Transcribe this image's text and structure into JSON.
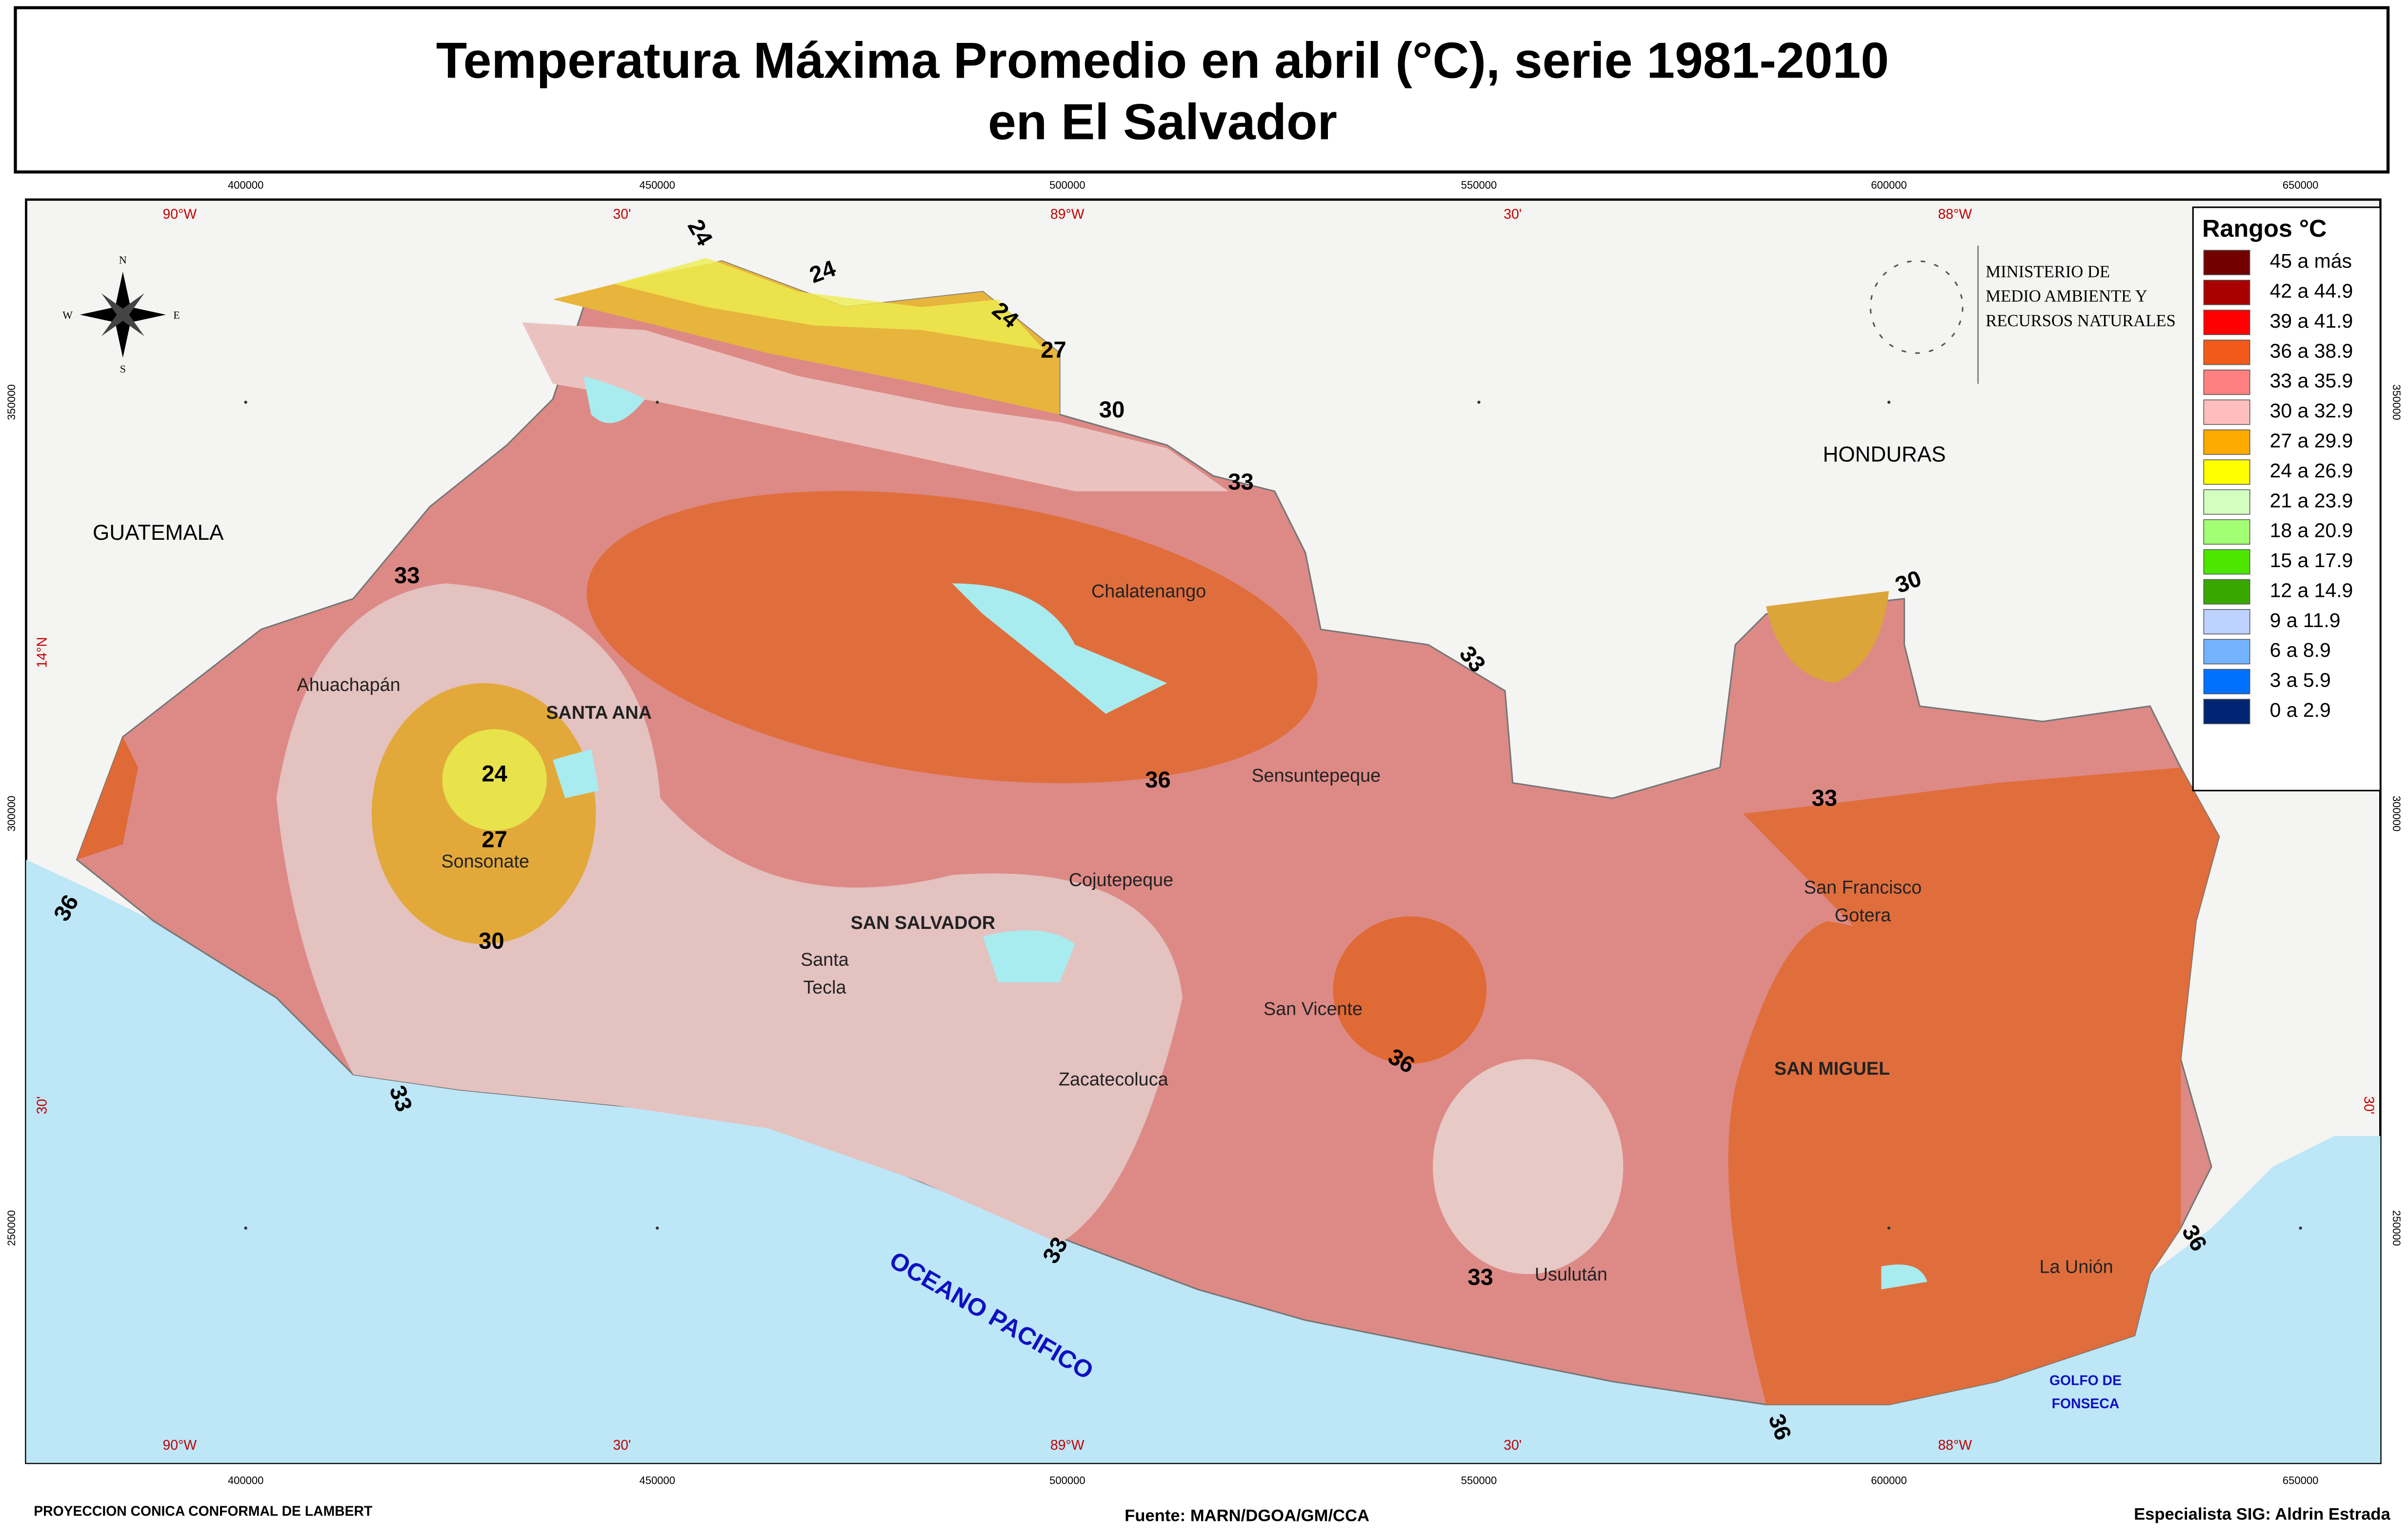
{
  "header": {
    "title": [
      "Temperatura Máxima Promedio en abril (°C), serie 1981-2010",
      "en El Salvador"
    ]
  },
  "legend": {
    "title": "Rangos °C",
    "items": [
      {
        "label": "45 a más",
        "color": "#730000"
      },
      {
        "label": "42 a 44.9",
        "color": "#a80000"
      },
      {
        "label": "39 a 41.9",
        "color": "#ff0000"
      },
      {
        "label": "36 a 38.9",
        "color": "#f25a1c"
      },
      {
        "label": "33 a 35.9",
        "color": "#ff8080"
      },
      {
        "label": "30 a 32.9",
        "color": "#ffbebe"
      },
      {
        "label": "27 a 29.9",
        "color": "#ffaa00"
      },
      {
        "label": "24 a 26.9",
        "color": "#ffff00"
      },
      {
        "label": "21 a 23.9",
        "color": "#d3ffbe"
      },
      {
        "label": "18 a 20.9",
        "color": "#a3ff73"
      },
      {
        "label": "15 a 17.9",
        "color": "#4ce600"
      },
      {
        "label": "12 a 14.9",
        "color": "#38a800"
      },
      {
        "label": "9 a 11.9",
        "color": "#bed2ff"
      },
      {
        "label": "6 a 8.9",
        "color": "#73b2ff"
      },
      {
        "label": "3 a 5.9",
        "color": "#0070ff"
      },
      {
        "label": "0 a 2.9",
        "color": "#002673"
      }
    ]
  },
  "ministry": [
    "MINISTERIO DE",
    "MEDIO AMBIENTE Y",
    "RECURSOS NATURALES"
  ],
  "countries": [
    "GUATEMALA",
    "HONDURAS"
  ],
  "ocean": "OCEANO PACIFICO",
  "gulf": [
    "GOLFO DE",
    "FONSECA"
  ],
  "places": [
    [
      "Chalatenango"
    ],
    [
      "Ahuachapán"
    ],
    [
      "SANTA ANA"
    ],
    [
      "Sensuntepeque"
    ],
    [
      "Sonsonate"
    ],
    [
      "Cojutepeque"
    ],
    [
      "SAN SALVADOR"
    ],
    [
      "Santa",
      "Tecla"
    ],
    [
      "San Vicente"
    ],
    [
      "Zacatecoluca"
    ],
    [
      "San Francisco",
      "Gotera"
    ],
    [
      "SAN MIGUEL"
    ],
    [
      "Usulután"
    ],
    [
      "La Unión"
    ]
  ],
  "isotherms": [
    24,
    24,
    24,
    27,
    30,
    33,
    30,
    33,
    33,
    36,
    33,
    24,
    27,
    30,
    36,
    36,
    33,
    33,
    33,
    36,
    36
  ],
  "compass": [
    "N",
    "E",
    "S",
    "W"
  ],
  "grid": {
    "eastings": [
      "400000",
      "450000",
      "500000",
      "550000",
      "600000",
      "650000"
    ],
    "longitudes": [
      "90°W",
      "30'",
      "89°W",
      "30'",
      "88°W"
    ],
    "northings": [
      "350000",
      "300000",
      "250000"
    ],
    "latitudes": [
      "14°N",
      "30'"
    ]
  },
  "footer": {
    "projection": "PROYECCION CONICA CONFORMAL DE LAMBERT",
    "source": "Fuente: MARN/DGOA/GM/CCA",
    "author": "Especialista SIG: Aldrin Estrada"
  }
}
